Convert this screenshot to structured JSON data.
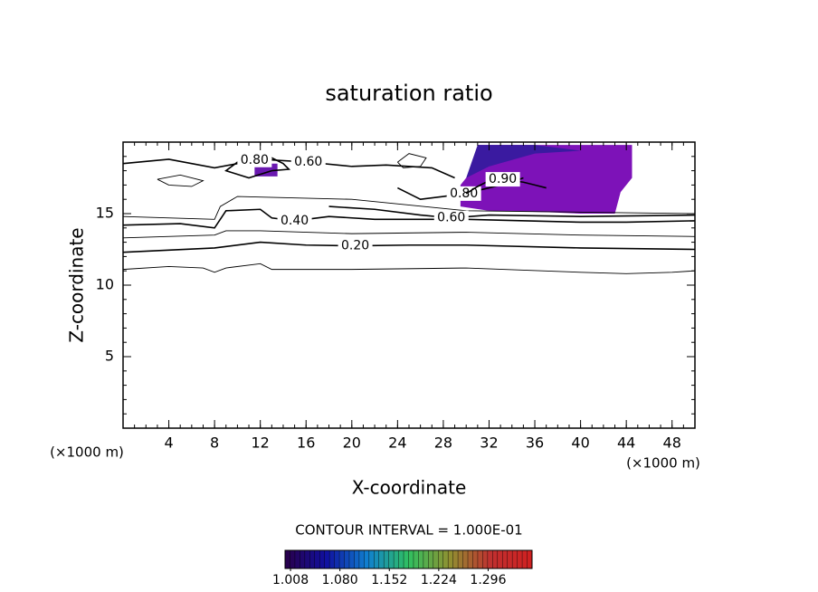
{
  "chart_data": {
    "type": "contour",
    "title": "saturation ratio",
    "x_label": "X-coordinate",
    "y_label": "Z-coordinate",
    "x_unit_label": "(×1000 m)",
    "y_unit_label": "(×1000 m)",
    "note": "CONTOUR INTERVAL = 1.000E-01",
    "xlim": [
      0,
      50
    ],
    "ylim": [
      0,
      20
    ],
    "xticks": [
      4,
      8,
      12,
      16,
      20,
      24,
      28,
      32,
      36,
      40,
      44,
      48
    ],
    "yticks": [
      5,
      10,
      15
    ],
    "line_color": "#000000",
    "contours": [
      {
        "x": [
          0,
          4,
          7,
          8,
          9,
          12,
          13,
          20,
          30,
          40,
          44,
          48,
          50
        ],
        "y": [
          11.1,
          11.3,
          11.2,
          10.9,
          11.2,
          11.5,
          11.1,
          11.1,
          11.2,
          10.9,
          10.8,
          10.9,
          11.0
        ]
      },
      {
        "label": "0.20",
        "x": [
          0,
          8,
          12,
          16,
          20.3,
          25,
          30,
          40,
          50
        ],
        "y": [
          12.3,
          12.6,
          13.0,
          12.8,
          12.75,
          12.8,
          12.8,
          12.6,
          12.5
        ]
      },
      {
        "x": [
          0,
          8,
          9,
          12,
          20,
          30,
          40,
          50
        ],
        "y": [
          13.3,
          13.5,
          13.8,
          13.8,
          13.6,
          13.7,
          13.5,
          13.4
        ]
      },
      {
        "label": "0.40",
        "x": [
          0,
          5,
          8,
          9,
          12,
          13,
          15,
          18,
          22,
          30,
          40,
          44,
          50
        ],
        "y": [
          14.2,
          14.3,
          14.0,
          15.2,
          15.3,
          14.7,
          14.5,
          14.8,
          14.6,
          14.6,
          14.4,
          14.4,
          14.5
        ]
      },
      {
        "x": [
          0,
          8,
          8.5,
          10,
          20,
          30,
          50
        ],
        "y": [
          14.8,
          14.6,
          15.5,
          16.2,
          16.0,
          15.2,
          15.0
        ]
      },
      {
        "label": "0.60",
        "x": [
          18,
          22,
          26,
          28.7,
          32,
          40,
          50
        ],
        "y": [
          15.5,
          15.3,
          14.9,
          14.7,
          14.9,
          14.8,
          14.9
        ]
      },
      {
        "label": "0.60",
        "x": [
          0,
          4,
          8,
          12,
          16.2,
          20,
          23,
          27,
          29
        ],
        "y": [
          18.5,
          18.8,
          18.2,
          18.8,
          18.6,
          18.3,
          18.4,
          18.2,
          17.5
        ]
      },
      {
        "label": "0.80",
        "x": [
          13,
          11,
          9,
          10,
          11.5,
          13,
          14,
          14.5,
          13
        ],
        "y": [
          18.0,
          17.5,
          18.0,
          18.6,
          18.75,
          18.9,
          18.5,
          18.1,
          18.0
        ]
      },
      {
        "label": "0.80",
        "x": [
          24,
          26,
          28,
          29.8,
          32,
          34,
          35
        ],
        "y": [
          16.8,
          16.0,
          16.2,
          16.4,
          16.8,
          17.2,
          17.5
        ]
      },
      {
        "label": "0.90",
        "x": [
          30,
          31,
          32,
          33.2,
          35,
          36,
          37
        ],
        "y": [
          16.4,
          16.9,
          17.3,
          17.4,
          17.2,
          17.0,
          16.8
        ]
      },
      {
        "x": [
          3,
          5,
          7,
          6,
          4,
          3
        ],
        "y": [
          17.4,
          17.7,
          17.3,
          16.9,
          17.0,
          17.4
        ]
      },
      {
        "x": [
          24,
          25,
          26.5,
          26,
          24.5,
          24
        ],
        "y": [
          18.6,
          19.2,
          18.9,
          18.3,
          18.2,
          18.6
        ]
      }
    ],
    "regions": [
      {
        "color": "#7d12b8",
        "x": [
          31,
          36,
          44.5,
          44.5,
          43.5,
          43,
          40,
          37,
          32,
          29.5,
          29.5,
          31
        ],
        "y": [
          19.8,
          19.8,
          19.8,
          17.5,
          16.5,
          15.0,
          15.0,
          15.1,
          15.2,
          15.5,
          17.0,
          18.5
        ]
      },
      {
        "color": "#3a1aa0",
        "x": [
          31,
          36,
          40,
          36,
          32,
          30
        ],
        "y": [
          19.8,
          19.8,
          19.4,
          19.2,
          18.3,
          17.5
        ]
      },
      {
        "color": "#6a18b0",
        "x": [
          11.5,
          13.5,
          13.5,
          11.5
        ],
        "y": [
          17.6,
          17.6,
          18.5,
          18.5
        ]
      }
    ],
    "colorbar": {
      "lim": [
        1.0,
        1.36
      ],
      "colors": [
        "#2a004a",
        "#1010a0",
        "#1080d0",
        "#30c060",
        "#909030",
        "#c03030",
        "#d02020"
      ],
      "ticks": [
        1.008,
        {
          "value": 1.08,
          "label": "1.080"
        },
        1.152,
        1.224,
        1.296
      ]
    }
  }
}
